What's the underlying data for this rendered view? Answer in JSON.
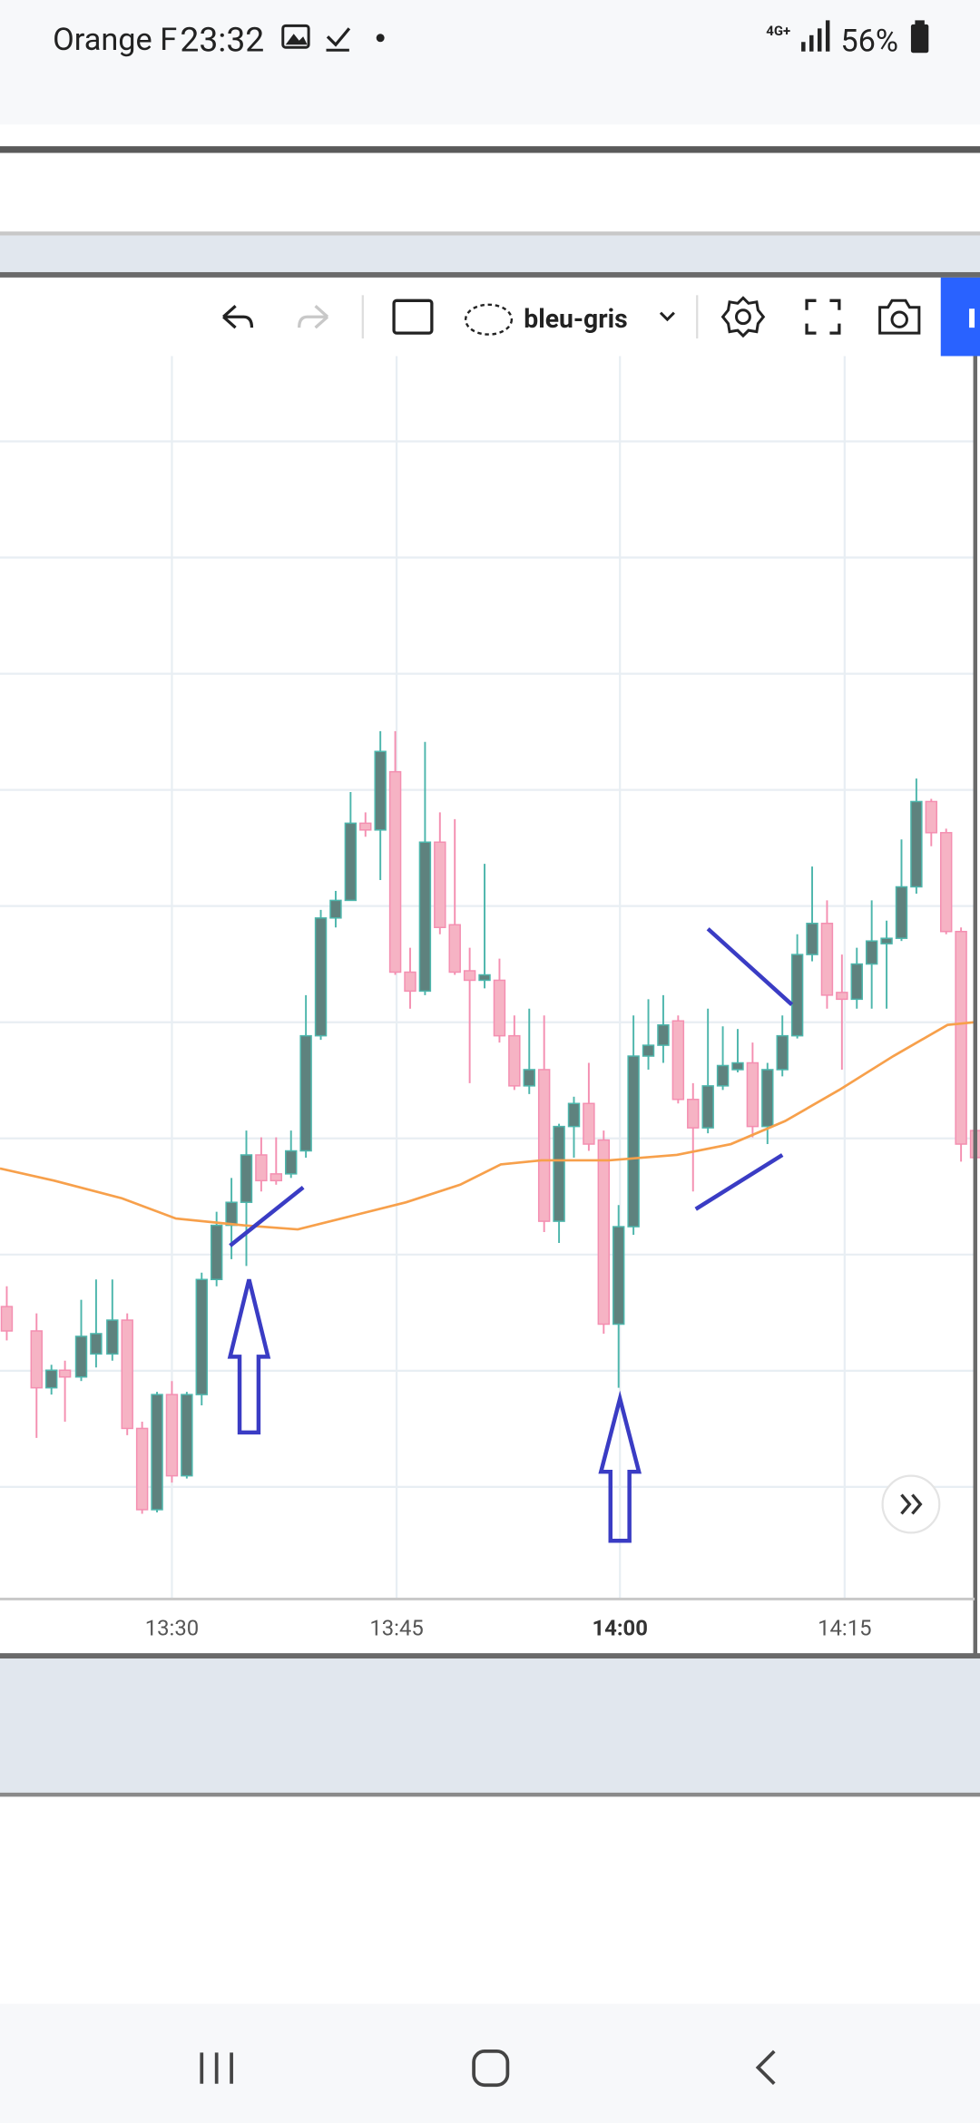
{
  "status_bar": {
    "carrier": "Orange F",
    "time": "23:32",
    "network": "4G+",
    "battery": "56%"
  },
  "toolbar": {
    "style": "bleu-gris"
  },
  "chart": {
    "x_labels": [
      "13:30",
      "13:45",
      "14:00",
      "14:15"
    ]
  }
}
